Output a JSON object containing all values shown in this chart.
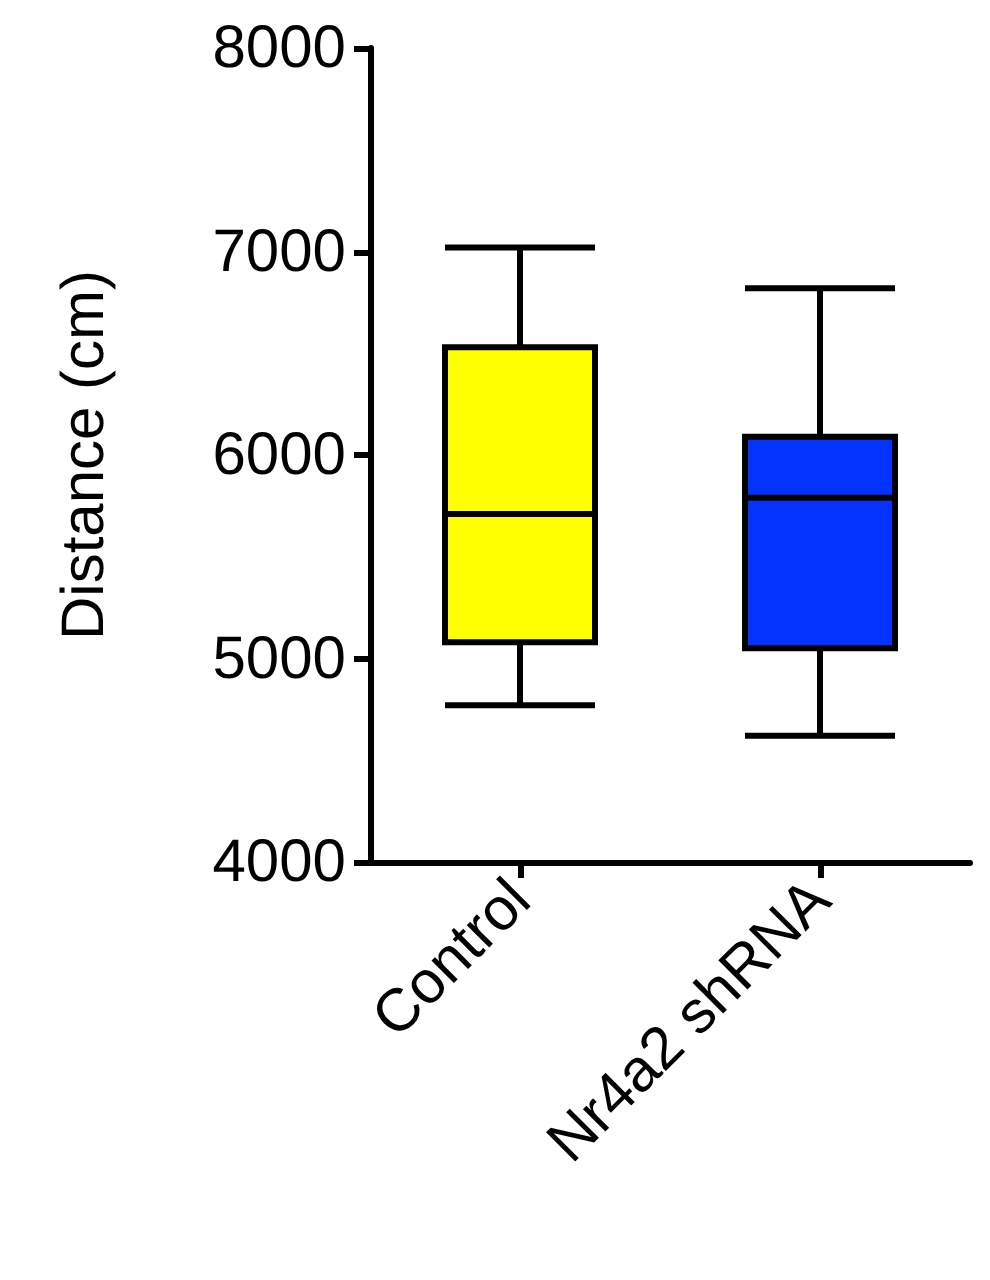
{
  "chart_data": {
    "type": "box",
    "ylabel": "Distance (cm)",
    "categories": [
      "Control",
      "Nr4a2 shRNA"
    ],
    "boxes": [
      {
        "low": 4770,
        "q1": 5080,
        "median": 5710,
        "q3": 6530,
        "high": 7020
      },
      {
        "low": 4620,
        "q1": 5050,
        "median": 5790,
        "q3": 6090,
        "high": 6820
      }
    ],
    "colors": [
      "#ffff00",
      "#0433ff"
    ],
    "ylim": [
      4000,
      8000
    ],
    "yticks": [
      4000,
      5000,
      6000,
      7000,
      8000
    ],
    "grid": false
  }
}
